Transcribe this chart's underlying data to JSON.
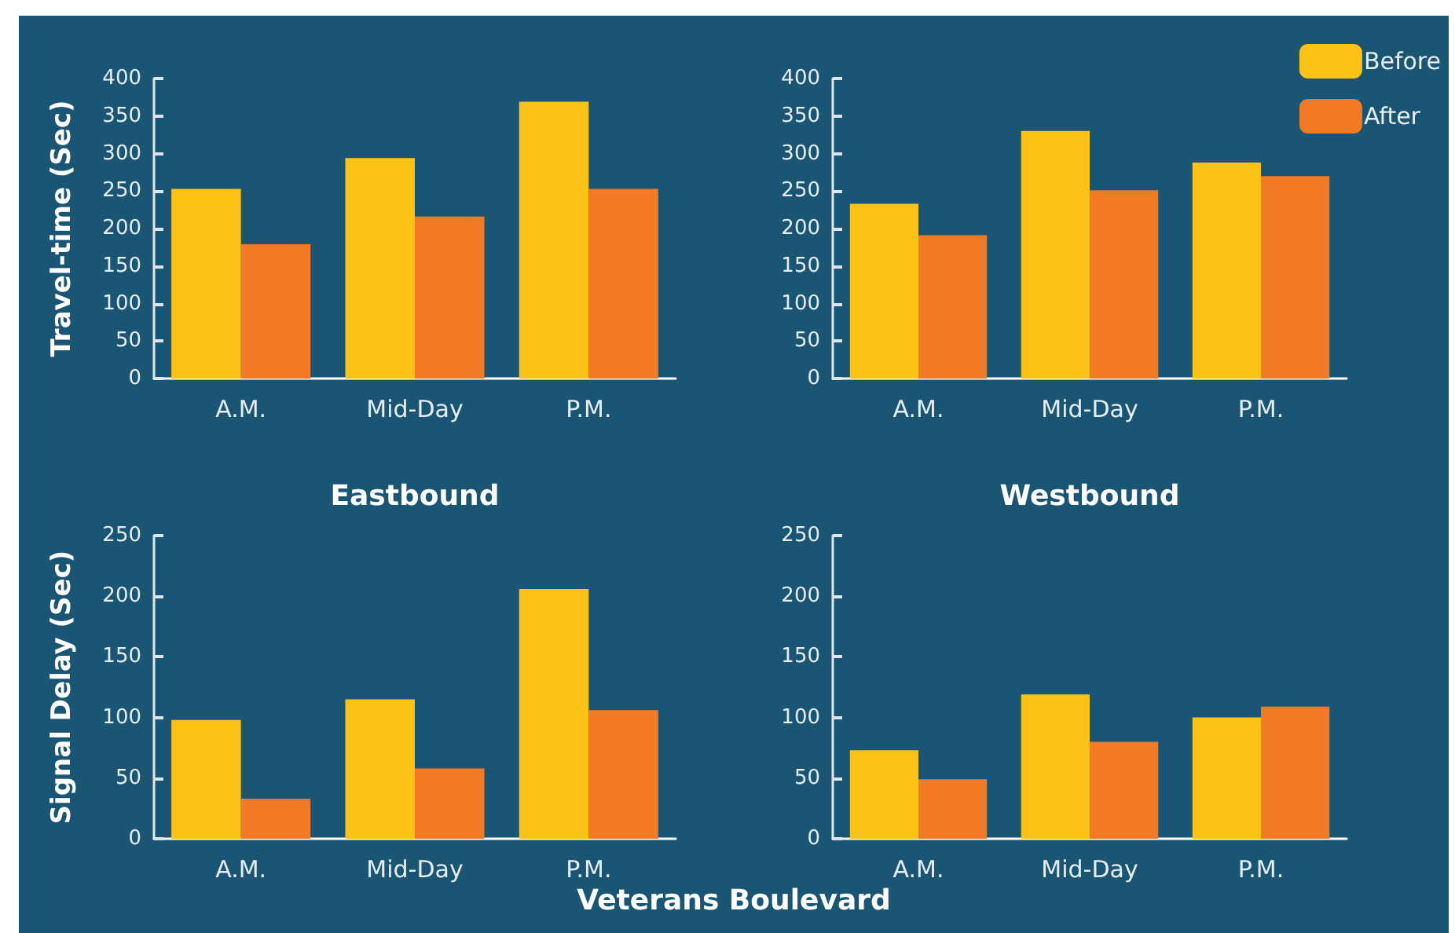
{
  "chart_data": [
    {
      "type": "bar",
      "ylabel": "Travel-time (Sec)",
      "xlabel": "Eastbound",
      "categories": [
        "A.M.",
        "Mid-Day",
        "P.M."
      ],
      "ylim": [
        0,
        400
      ],
      "yticks": [
        0,
        50,
        100,
        150,
        200,
        250,
        300,
        350,
        400
      ],
      "series": [
        {
          "color": "#fdc218",
          "values": [
            253,
            294,
            369
          ]
        },
        {
          "color": "#f37a25",
          "values": [
            179,
            216,
            253
          ]
        }
      ]
    },
    {
      "type": "bar",
      "xlabel": "Westbound",
      "categories": [
        "A.M.",
        "Mid-Day",
        "P.M."
      ],
      "ylim": [
        0,
        400
      ],
      "yticks": [
        0,
        50,
        100,
        150,
        200,
        250,
        300,
        350,
        400
      ],
      "legend": "top right",
      "series": [
        {
          "name": "Before",
          "color": "#fdc218",
          "values": [
            233,
            330,
            288
          ]
        },
        {
          "name": "After",
          "color": "#f37a25",
          "values": [
            191,
            251,
            270
          ]
        }
      ]
    },
    {
      "type": "bar",
      "ylabel": "Signal Delay (Sec)",
      "xlabel": "Veterans Boulevard",
      "categories": [
        "A.M.",
        "Mid-Day",
        "P.M."
      ],
      "ylim": [
        0,
        250
      ],
      "yticks": [
        0,
        50,
        100,
        150,
        200,
        250
      ],
      "series": [
        {
          "color": "#fdc218",
          "values": [
            98,
            115,
            206
          ]
        },
        {
          "color": "#f37a25",
          "values": [
            33,
            58,
            106
          ]
        }
      ]
    },
    {
      "type": "bar",
      "categories": [
        "A.M.",
        "Mid-Day",
        "P.M."
      ],
      "ylim": [
        0,
        250
      ],
      "yticks": [
        0,
        50,
        100,
        150,
        200,
        250
      ],
      "series": [
        {
          "color": "#fdc218",
          "values": [
            73,
            119,
            100
          ]
        },
        {
          "color": "#f37a25",
          "values": [
            49,
            80,
            109
          ]
        }
      ]
    }
  ]
}
